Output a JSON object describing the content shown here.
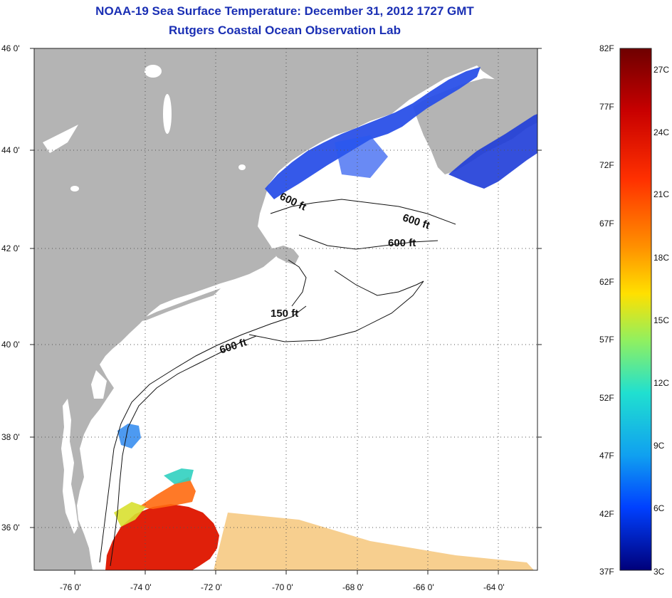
{
  "header": {
    "title": "NOAA-19 Sea Surface Temperature:  December 31, 2012 1727 GMT",
    "subtitle": "Rutgers Coastal Ocean Observation Lab"
  },
  "map": {
    "lat_labels": [
      "46 0'",
      "44 0'",
      "42 0'",
      "40 0'",
      "38 0'",
      "36 0'"
    ],
    "lon_labels": [
      "-76 0'",
      "-74 0'",
      "-72 0'",
      "-70 0'",
      "-68 0'",
      "-66 0'",
      "-64 0'"
    ],
    "contour_labels": [
      "600 ft",
      "600 ft",
      "600 ft",
      "150 ft",
      "600 ft"
    ],
    "colors": {
      "land": "#b4b4b4",
      "ocean": "#ffffff",
      "title": "#1a2fb4"
    }
  },
  "colorbar": {
    "fahrenheit_labels": [
      "82F",
      "77F",
      "72F",
      "67F",
      "62F",
      "57F",
      "52F",
      "47F",
      "42F",
      "37F"
    ],
    "celsius_labels": [
      "27C",
      "24C",
      "21C",
      "18C",
      "15C",
      "12C",
      "9C",
      "6C",
      "3C"
    ],
    "colors": [
      "#7a0000",
      "#d40000",
      "#ff4000",
      "#ff9a00",
      "#ffe800",
      "#a0f050",
      "#30e0c0",
      "#10a0f0",
      "#0040ff",
      "#0000a0"
    ]
  }
}
